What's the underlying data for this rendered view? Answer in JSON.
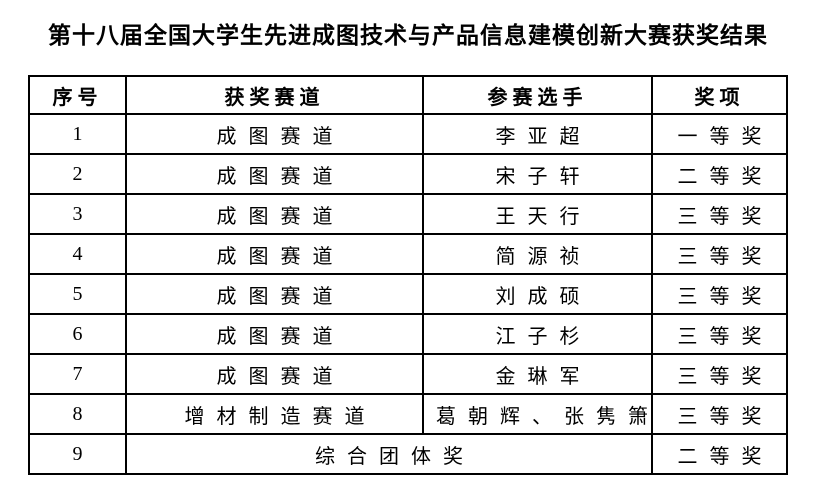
{
  "title": "第十八届全国大学生先进成图技术与产品信息建模创新大赛获奖结果",
  "table": {
    "headers": [
      "序号",
      "获奖赛道",
      "参赛选手",
      "奖项"
    ],
    "rows": [
      {
        "no": "1",
        "track": "成图赛道",
        "contestant": "李亚超",
        "award": "一等奖"
      },
      {
        "no": "2",
        "track": "成图赛道",
        "contestant": "宋子轩",
        "award": "二等奖"
      },
      {
        "no": "3",
        "track": "成图赛道",
        "contestant": "王天行",
        "award": "三等奖"
      },
      {
        "no": "4",
        "track": "成图赛道",
        "contestant": "简源祯",
        "award": "三等奖"
      },
      {
        "no": "5",
        "track": "成图赛道",
        "contestant": "刘成硕",
        "award": "三等奖"
      },
      {
        "no": "6",
        "track": "成图赛道",
        "contestant": "江子杉",
        "award": "三等奖"
      },
      {
        "no": "7",
        "track": "成图赛道",
        "contestant": "金琳军",
        "award": "三等奖"
      },
      {
        "no": "8",
        "track": "增材制造赛道",
        "contestant": "葛朝辉、张隽箫",
        "award": "三等奖"
      },
      {
        "no": "9",
        "merged": "综合团体奖",
        "award": "二等奖"
      }
    ]
  },
  "colors": {
    "text": "#000000",
    "border": "#000000",
    "background": "#ffffff"
  }
}
